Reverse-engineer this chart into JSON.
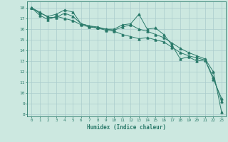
{
  "title": "",
  "xlabel": "Humidex (Indice chaleur)",
  "ylabel": "",
  "background_color": "#cce8e0",
  "grid_color": "#aacccc",
  "line_color": "#2a7a6a",
  "xlim": [
    -0.5,
    23.5
  ],
  "ylim": [
    7.8,
    18.6
  ],
  "yticks": [
    8,
    9,
    10,
    11,
    12,
    13,
    14,
    15,
    16,
    17,
    18
  ],
  "xticks": [
    0,
    1,
    2,
    3,
    4,
    5,
    6,
    7,
    8,
    9,
    10,
    11,
    12,
    13,
    14,
    15,
    16,
    17,
    18,
    19,
    20,
    21,
    22,
    23
  ],
  "series": [
    [
      18.0,
      17.5,
      17.2,
      17.4,
      17.8,
      17.6,
      16.5,
      16.3,
      16.2,
      16.0,
      16.0,
      16.4,
      16.5,
      17.4,
      16.0,
      16.1,
      15.5,
      14.5,
      13.2,
      13.4,
      13.0,
      13.1,
      11.3,
      9.5
    ],
    [
      18.0,
      17.3,
      16.9,
      17.2,
      17.0,
      16.8,
      16.4,
      16.2,
      16.1,
      15.9,
      15.8,
      15.5,
      15.3,
      15.1,
      15.2,
      15.0,
      14.8,
      14.3,
      13.8,
      13.5,
      13.3,
      13.1,
      11.5,
      9.2
    ],
    [
      18.0,
      17.6,
      17.1,
      17.1,
      17.5,
      17.2,
      16.5,
      16.3,
      16.1,
      16.0,
      15.9,
      16.2,
      16.4,
      16.0,
      15.8,
      15.5,
      15.2,
      14.7,
      14.2,
      13.8,
      13.5,
      13.2,
      12.0,
      8.2
    ]
  ]
}
